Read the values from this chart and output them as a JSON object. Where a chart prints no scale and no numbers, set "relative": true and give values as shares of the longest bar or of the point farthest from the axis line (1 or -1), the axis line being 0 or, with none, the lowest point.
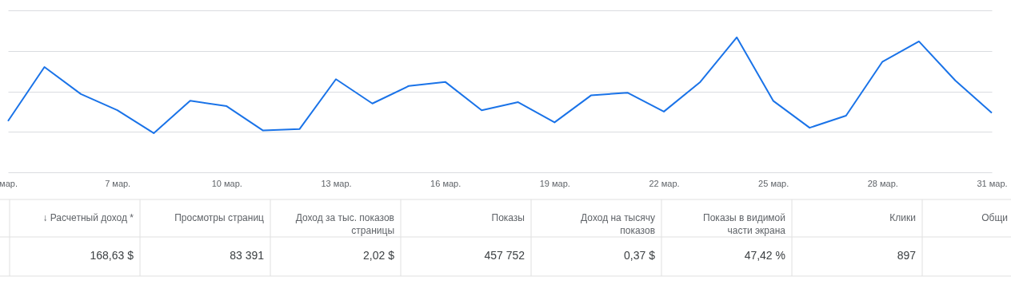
{
  "chart_data": [
    {
      "type": "line",
      "relative": true,
      "grid": "y",
      "marker": "none",
      "line_style": "solid",
      "categories": [
        "мар.",
        null,
        null,
        "7 мар.",
        null,
        null,
        "10 мар.",
        null,
        null,
        "13 мар.",
        null,
        null,
        "16 мар.",
        null,
        null,
        "19 мар.",
        null,
        null,
        "22 мар.",
        null,
        null,
        "25 мар.",
        null,
        null,
        "28 мар.",
        null,
        null,
        "31 мар."
      ],
      "series": [
        {
          "color": "#1a73e8",
          "values": [
            0.38,
            0.78,
            0.58,
            0.46,
            0.29,
            0.53,
            0.49,
            0.31,
            0.32,
            0.69,
            0.51,
            0.64,
            0.67,
            0.46,
            0.52,
            0.37,
            0.57,
            0.59,
            0.45,
            0.67,
            1,
            0.53,
            0.33,
            0.42,
            0.82,
            0.97,
            0.68,
            0.44
          ]
        }
      ]
    },
    {
      "type": "other",
      "categories": [
        "↓ Расчетный доход *",
        "Просмотры страниц",
        "Доход за тыс. показов\nстраницы",
        "Показы",
        "Доход на тысячу\nпоказов",
        "Показы в видимой\nчасти экрана",
        "Клики",
        "Общи"
      ],
      "value_labels": [
        "168,63 $",
        "83 391",
        "2,02 $",
        "457 752",
        "0,37 $",
        "47,42 %",
        "897",
        null
      ]
    }
  ]
}
